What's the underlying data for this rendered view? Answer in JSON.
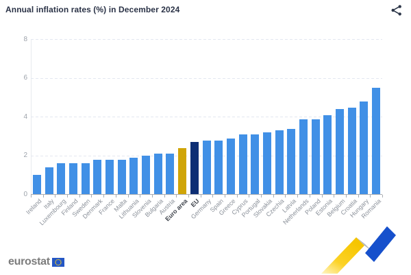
{
  "header": {
    "title": "Annual inflation rates (%) in December 2024"
  },
  "icons": {
    "share": "share-icon",
    "eu_flag": "eu-flag-icon",
    "watermark": "trend-zigzag-watermark"
  },
  "chart_data": {
    "type": "bar",
    "title": "Annual inflation rates (%) in December 2024",
    "xlabel": "",
    "ylabel": "",
    "ylim": [
      0,
      8
    ],
    "yticks": [
      0,
      2,
      4,
      6,
      8
    ],
    "grid": "horizontal-dashed",
    "legend": "none",
    "x_tick_label_rotation": -45,
    "categories": [
      "Ireland",
      "Italy",
      "Luxembourg",
      "Finland",
      "Sweden",
      "Denmark",
      "France",
      "Malta",
      "Lithuania",
      "Slovenia",
      "Bulgaria",
      "Austria",
      "Euro area",
      "EU",
      "Germany",
      "Spain",
      "Greece",
      "Cyprus",
      "Portugal",
      "Slovakia",
      "Czechia",
      "Latvia",
      "Netherlands",
      "Poland",
      "Estonia",
      "Belgium",
      "Croatia",
      "Hungary",
      "Romania"
    ],
    "values": [
      1.0,
      1.4,
      1.6,
      1.6,
      1.6,
      1.8,
      1.8,
      1.8,
      1.9,
      2.0,
      2.1,
      2.1,
      2.4,
      2.7,
      2.8,
      2.8,
      2.9,
      3.1,
      3.1,
      3.2,
      3.3,
      3.4,
      3.9,
      3.9,
      4.1,
      4.4,
      4.5,
      4.8,
      5.5
    ],
    "highlights": {
      "Euro area": {
        "color": "#D0A507",
        "bold": true
      },
      "EU": {
        "color": "#0D2E74",
        "bold": true
      }
    },
    "colors": {
      "default_bar": "#4190E6",
      "euro_area_bar": "#D0A507",
      "eu_bar": "#0D2E74",
      "gridline": "#E3E7F0",
      "axis": "#A8ACB2",
      "title": "#2A3246",
      "tick_label": "#8A9099",
      "highlight_label": "#40454D"
    }
  },
  "footer": {
    "brand": "eurostat"
  }
}
